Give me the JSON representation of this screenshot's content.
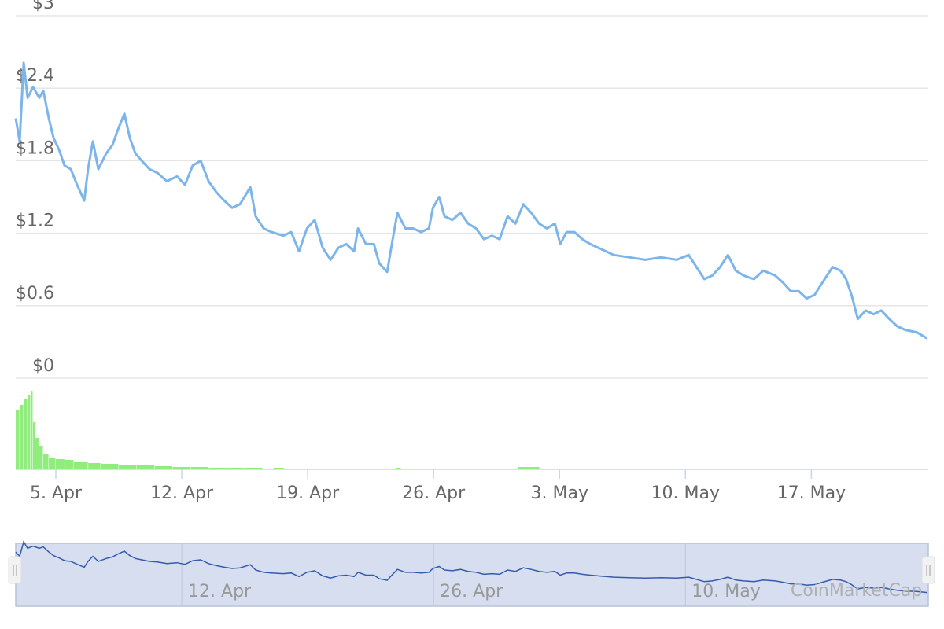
{
  "chart_data": {
    "type": "line",
    "x": [
      2.77,
      2.99,
      3.21,
      3.43,
      3.73,
      4.08,
      4.3,
      4.61,
      4.87,
      5.18,
      5.48,
      5.83,
      6.18,
      6.58,
      6.79,
      7.06,
      7.36,
      7.8,
      8.15,
      8.46,
      8.81,
      9.11,
      9.42,
      9.77,
      10.21,
      10.64,
      11.17,
      11.74,
      12.18,
      12.61,
      13.05,
      13.49,
      13.92,
      14.36,
      14.8,
      15.24,
      15.81,
      16.11,
      16.55,
      16.99,
      17.64,
      18.08,
      18.52,
      18.96,
      19.39,
      19.83,
      20.27,
      20.71,
      21.14,
      21.58,
      21.8,
      22.24,
      22.68,
      22.98,
      23.42,
      23.68,
      23.99,
      24.43,
      24.86,
      25.3,
      25.74,
      25.96,
      26.31,
      26.61,
      27.05,
      27.49,
      27.92,
      28.36,
      28.8,
      29.24,
      29.67,
      30.11,
      30.55,
      30.99,
      31.42,
      31.86,
      32.3,
      32.74,
      33.04,
      33.39,
      33.83,
      34.27,
      34.71,
      35.14,
      35.58,
      36.02,
      36.89,
      37.77,
      38.64,
      39.52,
      40.18,
      40.61,
      41.05,
      41.49,
      41.93,
      42.36,
      42.8,
      43.24,
      43.81,
      44.33,
      44.99,
      45.43,
      45.86,
      46.3,
      46.74,
      47.18,
      47.61,
      48.18,
      48.62,
      48.93,
      49.23,
      49.58,
      50.02,
      50.46,
      50.89,
      51.33,
      51.77,
      52.21,
      52.86,
      53.43
    ],
    "series": [
      {
        "color": "#7cb5ec",
        "values": [
          2.15,
          1.96,
          2.61,
          2.32,
          2.41,
          2.32,
          2.38,
          2.15,
          1.99,
          1.89,
          1.76,
          1.73,
          1.6,
          1.47,
          1.73,
          1.96,
          1.73,
          1.86,
          1.93,
          2.06,
          2.19,
          1.99,
          1.86,
          1.8,
          1.73,
          1.7,
          1.63,
          1.67,
          1.6,
          1.76,
          1.8,
          1.63,
          1.54,
          1.47,
          1.41,
          1.44,
          1.58,
          1.34,
          1.24,
          1.21,
          1.18,
          1.21,
          1.05,
          1.24,
          1.31,
          1.08,
          0.98,
          1.08,
          1.11,
          1.05,
          1.24,
          1.11,
          1.11,
          0.95,
          0.88,
          1.11,
          1.37,
          1.24,
          1.24,
          1.21,
          1.24,
          1.41,
          1.5,
          1.34,
          1.31,
          1.37,
          1.28,
          1.24,
          1.15,
          1.18,
          1.15,
          1.34,
          1.28,
          1.44,
          1.37,
          1.28,
          1.24,
          1.28,
          1.11,
          1.21,
          1.21,
          1.15,
          1.11,
          1.08,
          1.05,
          1.02,
          1.0,
          0.98,
          1.0,
          0.98,
          1.02,
          0.92,
          0.82,
          0.85,
          0.92,
          1.02,
          0.89,
          0.85,
          0.82,
          0.89,
          0.85,
          0.79,
          0.72,
          0.72,
          0.66,
          0.69,
          0.79,
          0.92,
          0.89,
          0.82,
          0.69,
          0.49,
          0.56,
          0.53,
          0.56,
          0.49,
          0.43,
          0.4,
          0.38,
          0.33
        ]
      }
    ],
    "xlim": [
      2.77,
      53.5
    ],
    "xticks": [
      {
        "value": 5,
        "label": "5. Apr"
      },
      {
        "value": 12,
        "label": "12. Apr"
      },
      {
        "value": 19,
        "label": "19. Apr"
      },
      {
        "value": 26,
        "label": "26. Apr"
      },
      {
        "value": 33,
        "label": "3. May"
      },
      {
        "value": 40,
        "label": "10. May"
      },
      {
        "value": 47,
        "label": "17. May"
      }
    ],
    "ylim": [
      0,
      3
    ],
    "yticks": [
      {
        "value": 0,
        "label": "$0"
      },
      {
        "value": 0.6,
        "label": "$0.6"
      },
      {
        "value": 1.2,
        "label": "$1.2"
      },
      {
        "value": 1.8,
        "label": "$1.8"
      },
      {
        "value": 2.4,
        "label": "$2.4"
      },
      {
        "value": 3,
        "label": "$3"
      }
    ],
    "grid": true,
    "volume": {
      "color": "#90ed7d",
      "ylim": [
        0,
        100
      ],
      "bins": [
        2.77,
        2.99,
        3.21,
        3.43,
        3.6,
        3.73,
        3.86,
        4.08,
        4.3,
        4.61,
        5.0,
        5.5,
        6.0,
        6.8,
        7.5,
        8.5,
        9.5,
        10.5,
        11.5,
        12.5,
        13.5,
        14.5,
        15.5,
        16.5,
        17.1,
        17.7,
        23.9,
        24.2,
        30.7,
        31.9,
        53.5
      ],
      "values": [
        75,
        82,
        90,
        95,
        100,
        60,
        40,
        30,
        20,
        15,
        13,
        12,
        10,
        8,
        7,
        6,
        5,
        4,
        3,
        3,
        2,
        2,
        2,
        0,
        2,
        0,
        2,
        0,
        3,
        0
      ]
    },
    "navigator": {
      "color": "#335cad",
      "xticks": [
        1,
        3,
        5
      ]
    },
    "watermark": "CoinMarketCap"
  }
}
